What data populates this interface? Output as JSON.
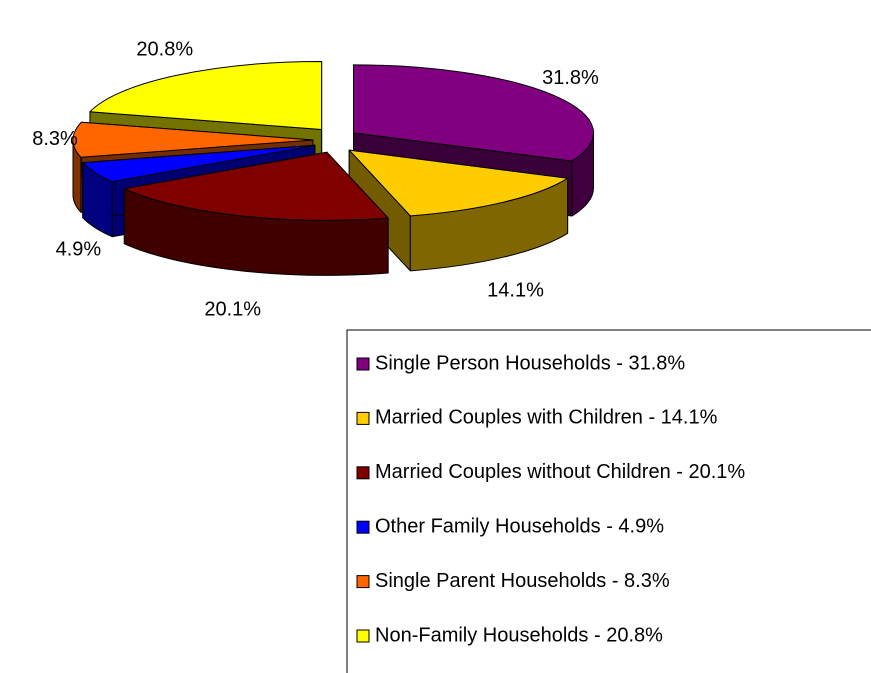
{
  "chart_data": {
    "type": "pie",
    "categories": [
      "Single Person Households - 31.8%",
      "Married Couples with Children - 14.1%",
      "Married Couples without Children - 20.1%",
      "Other Family Households - 4.9%",
      "Single Parent Households - 8.3%",
      "Non-Family Households - 20.8%"
    ],
    "values": [
      31.8,
      14.1,
      20.1,
      4.9,
      8.3,
      20.8
    ],
    "value_labels": [
      "31.8%",
      "14.1%",
      "20.1%",
      "4.9%",
      "8.3%",
      "20.8%"
    ],
    "colors": [
      "#800080",
      "#ffcc00",
      "#800000",
      "#0000ff",
      "#ff6600",
      "#ffff00"
    ],
    "legend": "bottom-right"
  }
}
